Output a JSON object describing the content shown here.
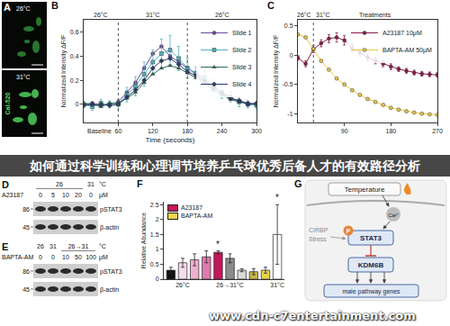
{
  "banner": "如何通过科学训练和心理调节培养乒乓球优秀后备人才的有效路径分析",
  "watermark": "www.cdn-c7entertainment.com",
  "panel_a": {
    "label": "A",
    "images": [
      "26°C",
      "31°C"
    ],
    "stain": "Cal-520"
  },
  "chart_data": [
    {
      "panel": "B",
      "type": "line",
      "x": [
        0,
        15,
        30,
        45,
        60,
        75,
        90,
        105,
        120,
        135,
        150,
        165,
        180,
        195,
        210,
        225,
        240,
        255,
        270,
        285,
        300
      ],
      "xlabel": "Time (seconds)",
      "ylabel": "Normalized Intensity ΔF/F",
      "xlim": [
        0,
        300
      ],
      "xticks": [
        60,
        120,
        180,
        240,
        300
      ],
      "ylim": [
        -0.15,
        0.7
      ],
      "yticks": [
        0,
        0.2,
        0.4,
        0.6
      ],
      "grid": false,
      "legend": "upper right",
      "vlines": [
        60,
        180
      ],
      "annotations": [
        {
          "x": 30,
          "text": "26°C"
        },
        {
          "x": 120,
          "text": "31°C"
        },
        {
          "x": 240,
          "text": "26°C"
        }
      ],
      "axis_annotations": [
        {
          "x": 28,
          "text": "Baseline"
        }
      ],
      "series": [
        {
          "name": "Slide 1",
          "color": "#6a4c9c",
          "marker": "circle",
          "line_style": "solid",
          "values": [
            0,
            0.01,
            -0.01,
            0.0,
            0.02,
            0.1,
            0.18,
            0.3,
            0.42,
            0.48,
            0.4,
            0.35,
            0.3,
            0.25,
            0.2,
            0.15,
            0.1,
            0.05,
            0.03,
            0.01,
            0.0
          ]
        },
        {
          "name": "Slide 2",
          "color": "#4fb3bf",
          "marker": "square",
          "line_style": "solid",
          "values": [
            0.0,
            -0.02,
            0.01,
            0.0,
            0.0,
            0.08,
            0.15,
            0.25,
            0.35,
            0.42,
            0.45,
            0.38,
            0.3,
            0.26,
            0.22,
            0.16,
            0.1,
            0.06,
            0.02,
            0.0,
            -0.01
          ],
          "errors": [
            0.03,
            0.03,
            0.03,
            0.03,
            0.04,
            0.06,
            0.08,
            0.1,
            0.1,
            0.12,
            0.12,
            0.1,
            0.08,
            0.05,
            0.06,
            0.05,
            0.05,
            0.04,
            0.04,
            0.03,
            0.03
          ]
        },
        {
          "name": "Slide 3",
          "color": "#2e6b5e",
          "marker": "triangle",
          "line_style": "solid",
          "values": [
            0.01,
            0.0,
            -0.02,
            0.01,
            0.01,
            0.05,
            0.1,
            0.18,
            0.25,
            0.3,
            0.32,
            0.3,
            0.26,
            0.22,
            0.18,
            0.12,
            0.08,
            0.04,
            0.02,
            0.01,
            0.0
          ]
        },
        {
          "name": "Slide 4",
          "color": "#2b3a67",
          "marker": "diamond",
          "line_style": "solid",
          "values": [
            -0.01,
            0.0,
            0.0,
            -0.01,
            0.0,
            0.06,
            0.12,
            0.2,
            0.3,
            0.36,
            0.38,
            0.33,
            0.27,
            0.24,
            0.19,
            0.14,
            0.09,
            0.05,
            0.03,
            0.0,
            0.01
          ]
        }
      ]
    },
    {
      "panel": "C",
      "type": "line",
      "x": [
        0,
        15,
        30,
        45,
        60,
        75,
        90,
        105,
        120,
        135,
        150,
        165,
        180,
        195,
        210,
        225,
        240,
        255,
        270
      ],
      "ylabel": "Normalized Intensity ΔF/F",
      "xlim": [
        0,
        270
      ],
      "xticks": [
        90,
        180,
        270
      ],
      "ylim": [
        -1.15,
        0.6
      ],
      "yticks": [
        -1,
        -0.5,
        0,
        0.5
      ],
      "grid": false,
      "legend": "upper right",
      "vlines": [
        30
      ],
      "annotations": [
        {
          "x": 12,
          "text": "26°C"
        },
        {
          "x": 48,
          "text": "31°C"
        },
        {
          "x": 150,
          "text": "Treatments"
        }
      ],
      "series": [
        {
          "name": "A23187 10μM",
          "color": "#8b1a4a",
          "marker": "circle",
          "line_style": "solid",
          "values": [
            -0.05,
            -0.15,
            0.1,
            0.2,
            0.28,
            0.3,
            0.25,
            0.12,
            0.04,
            -0.04,
            -0.1,
            -0.15,
            -0.2,
            -0.24,
            -0.27,
            -0.3,
            -0.32,
            -0.33,
            -0.34
          ],
          "errors": [
            0.04,
            0.05,
            0.06,
            0.06,
            0.07,
            0.08,
            0.08,
            0.07,
            0.06,
            0.06,
            0.05,
            0.05,
            0.05,
            0.04,
            0.04,
            0.04,
            0.04,
            0.04,
            0.04
          ]
        },
        {
          "name": "BAPTA-AM 50μM",
          "color": "#e8c547",
          "marker": "circle",
          "line_style": "solid",
          "values": [
            0.35,
            0.3,
            0.1,
            -0.1,
            -0.25,
            -0.4,
            -0.5,
            -0.6,
            -0.68,
            -0.75,
            -0.8,
            -0.85,
            -0.9,
            -0.93,
            -0.96,
            -0.98,
            -1.0,
            -1.01,
            -1.02
          ]
        }
      ]
    },
    {
      "panel": "F",
      "type": "bar",
      "categories": [
        null,
        "26°C",
        null,
        null,
        null,
        "26→31°C",
        null,
        null,
        null,
        "31°C"
      ],
      "ylabel": "Relative Abundance",
      "ylim": [
        0,
        2.6
      ],
      "yticks": [
        0,
        0.5,
        1,
        1.5,
        2,
        2.5
      ],
      "grid": false,
      "legend": "upper left",
      "annotations": [
        {
          "x": 4,
          "text": "*"
        },
        {
          "x": 9,
          "text": "*"
        }
      ],
      "series": [
        {
          "name": "A23187",
          "color": "#c2185b",
          "colors": [
            "#111111",
            "#f7dce9",
            "#eeb0cf",
            "#e07aae",
            "#c2185b",
            null,
            null,
            null,
            null,
            null
          ],
          "values": [
            0.3,
            0.55,
            0.65,
            0.75,
            0.9,
            null,
            null,
            null,
            null,
            null
          ],
          "errors": [
            0.1,
            0.15,
            0.2,
            0.2,
            0.05,
            null,
            null,
            null,
            null,
            null
          ]
        },
        {
          "name": "BAPTA-AM",
          "color": "#e8d44d",
          "colors": [
            null,
            null,
            null,
            null,
            null,
            "#8c8c8c",
            "#d9d9d9",
            "#c9b44a",
            "#e8d44d",
            "#ffffff"
          ],
          "values": [
            null,
            null,
            null,
            null,
            null,
            0.7,
            0.3,
            0.25,
            0.3,
            1.5
          ],
          "errors": [
            null,
            null,
            null,
            null,
            null,
            0.15,
            0.05,
            0.1,
            0.1,
            1.0
          ]
        }
      ]
    }
  ],
  "blots": [
    {
      "label": "D",
      "temperatures": [
        {
          "text": "26",
          "lanes": [
            0,
            3
          ]
        },
        {
          "text": "31",
          "lanes": [
            4,
            4
          ]
        }
      ],
      "temperature_unit": "°C",
      "treatment": "A23187",
      "doses": [
        0,
        5,
        10,
        20,
        0
      ],
      "dose_unit": "μM",
      "rows": [
        {
          "kda": "86",
          "protein": "pSTAT3"
        },
        {
          "kda": "45",
          "protein": "β-actin"
        }
      ]
    },
    {
      "label": "E",
      "temperatures": [
        {
          "text": "26",
          "lanes": [
            0,
            0
          ]
        },
        {
          "text": "31",
          "lanes": [
            1,
            1
          ]
        },
        {
          "text": "26→31",
          "lanes": [
            2,
            4
          ]
        }
      ],
      "temperature_unit": "°C",
      "treatment": "BAPTA-AM",
      "doses": [
        0,
        0,
        10,
        50,
        100
      ],
      "dose_unit": "μM",
      "rows": [
        {
          "kda": "86",
          "protein": "pSTAT3"
        },
        {
          "kda": "45",
          "protein": "β-actin"
        }
      ]
    }
  ],
  "diagram": {
    "label": "G",
    "temperature": "Temperature",
    "ion": "Ca²⁺",
    "inputs": [
      "CIRBP",
      "Stress"
    ],
    "target": "STAT3",
    "phospho": "P",
    "gene": "KDM6B",
    "output": "male pathway genes"
  }
}
